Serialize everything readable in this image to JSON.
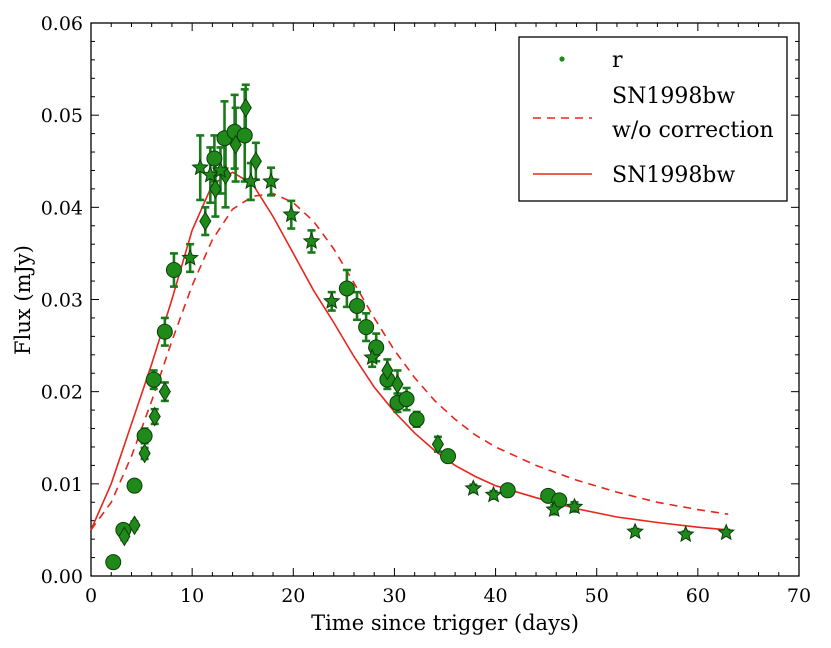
{
  "chart_data": {
    "type": "scatter",
    "xlabel": "Time since trigger (days)",
    "ylabel": "Flux (mJy)",
    "xlim": [
      0,
      70
    ],
    "ylim": [
      0,
      0.06
    ],
    "xticks": [
      "0",
      "10",
      "20",
      "30",
      "40",
      "50",
      "60",
      "70"
    ],
    "yticks": [
      "0.00",
      "0.01",
      "0.02",
      "0.03",
      "0.04",
      "0.05",
      "0.06"
    ],
    "legend_position": "top-right",
    "colors": {
      "points": "#1f8a1a",
      "point_edge": "#0b3d0b",
      "errorbar": "#1a7a1a",
      "model": "#e8261c"
    },
    "series": [
      {
        "name": "r",
        "kind": "scatter",
        "points": [
          {
            "x": 2.2,
            "y": 0.0015,
            "err": 0.0003,
            "marker": "circle"
          },
          {
            "x": 3.2,
            "y": 0.005,
            "err": 0.0005,
            "marker": "circle"
          },
          {
            "x": 4.3,
            "y": 0.0098,
            "err": 0.0005,
            "marker": "circle"
          },
          {
            "x": 5.3,
            "y": 0.0152,
            "err": 0.0008,
            "marker": "circle"
          },
          {
            "x": 6.2,
            "y": 0.0213,
            "err": 0.001,
            "marker": "circle"
          },
          {
            "x": 7.3,
            "y": 0.0265,
            "err": 0.0015,
            "marker": "circle"
          },
          {
            "x": 8.2,
            "y": 0.0332,
            "err": 0.0018,
            "marker": "circle"
          },
          {
            "x": 12.2,
            "y": 0.0453,
            "err": 0.0025,
            "marker": "circle"
          },
          {
            "x": 13.2,
            "y": 0.0475,
            "err": 0.004,
            "marker": "circle"
          },
          {
            "x": 14.2,
            "y": 0.0482,
            "err": 0.004,
            "marker": "circle"
          },
          {
            "x": 15.2,
            "y": 0.0478,
            "err": 0.005,
            "marker": "circle"
          },
          {
            "x": 25.3,
            "y": 0.0312,
            "err": 0.002,
            "marker": "circle"
          },
          {
            "x": 26.3,
            "y": 0.0293,
            "err": 0.0015,
            "marker": "circle"
          },
          {
            "x": 27.2,
            "y": 0.027,
            "err": 0.0015,
            "marker": "circle"
          },
          {
            "x": 28.2,
            "y": 0.0248,
            "err": 0.0015,
            "marker": "circle"
          },
          {
            "x": 29.3,
            "y": 0.0213,
            "err": 0.001,
            "marker": "circle"
          },
          {
            "x": 30.3,
            "y": 0.0188,
            "err": 0.001,
            "marker": "circle"
          },
          {
            "x": 31.2,
            "y": 0.0192,
            "err": 0.0012,
            "marker": "circle"
          },
          {
            "x": 32.2,
            "y": 0.017,
            "err": 0.0008,
            "marker": "circle"
          },
          {
            "x": 35.3,
            "y": 0.013,
            "err": 0.0006,
            "marker": "circle"
          },
          {
            "x": 41.2,
            "y": 0.0093,
            "err": 0.0004,
            "marker": "circle"
          },
          {
            "x": 45.2,
            "y": 0.0087,
            "err": 0.0005,
            "marker": "circle"
          },
          {
            "x": 46.3,
            "y": 0.0082,
            "err": 0.0006,
            "marker": "circle"
          },
          {
            "x": 3.3,
            "y": 0.0043,
            "err": 0.0004,
            "marker": "diamond"
          },
          {
            "x": 4.3,
            "y": 0.0055,
            "err": 0.0004,
            "marker": "diamond"
          },
          {
            "x": 5.3,
            "y": 0.0133,
            "err": 0.0006,
            "marker": "diamond"
          },
          {
            "x": 6.3,
            "y": 0.0173,
            "err": 0.0008,
            "marker": "diamond"
          },
          {
            "x": 7.3,
            "y": 0.02,
            "err": 0.001,
            "marker": "diamond"
          },
          {
            "x": 11.3,
            "y": 0.0385,
            "err": 0.0015,
            "marker": "diamond"
          },
          {
            "x": 12.3,
            "y": 0.042,
            "err": 0.003,
            "marker": "diamond"
          },
          {
            "x": 13.3,
            "y": 0.0435,
            "err": 0.0035,
            "marker": "diamond"
          },
          {
            "x": 14.3,
            "y": 0.0468,
            "err": 0.004,
            "marker": "diamond"
          },
          {
            "x": 15.3,
            "y": 0.0508,
            "err": 0.0025,
            "marker": "diamond"
          },
          {
            "x": 16.3,
            "y": 0.045,
            "err": 0.002,
            "marker": "diamond"
          },
          {
            "x": 29.3,
            "y": 0.0223,
            "err": 0.0012,
            "marker": "diamond"
          },
          {
            "x": 30.3,
            "y": 0.0208,
            "err": 0.0015,
            "marker": "diamond"
          },
          {
            "x": 34.3,
            "y": 0.0143,
            "err": 0.0008,
            "marker": "diamond"
          },
          {
            "x": 9.8,
            "y": 0.0345,
            "err": 0.0015,
            "marker": "star"
          },
          {
            "x": 10.8,
            "y": 0.0443,
            "err": 0.0035,
            "marker": "star"
          },
          {
            "x": 11.8,
            "y": 0.0435,
            "err": 0.003,
            "marker": "star"
          },
          {
            "x": 12.8,
            "y": 0.044,
            "err": 0.0025,
            "marker": "star"
          },
          {
            "x": 15.8,
            "y": 0.0428,
            "err": 0.002,
            "marker": "star"
          },
          {
            "x": 17.8,
            "y": 0.0428,
            "err": 0.0015,
            "marker": "star"
          },
          {
            "x": 19.8,
            "y": 0.0392,
            "err": 0.0015,
            "marker": "star"
          },
          {
            "x": 21.8,
            "y": 0.0363,
            "err": 0.0012,
            "marker": "star"
          },
          {
            "x": 23.8,
            "y": 0.0298,
            "err": 0.001,
            "marker": "star"
          },
          {
            "x": 27.8,
            "y": 0.0237,
            "err": 0.001,
            "marker": "star"
          },
          {
            "x": 37.8,
            "y": 0.0095,
            "err": 0.0004,
            "marker": "star"
          },
          {
            "x": 39.8,
            "y": 0.0088,
            "err": 0.0004,
            "marker": "star"
          },
          {
            "x": 45.8,
            "y": 0.0072,
            "err": 0.0005,
            "marker": "star"
          },
          {
            "x": 47.8,
            "y": 0.0075,
            "err": 0.0005,
            "marker": "star"
          },
          {
            "x": 53.8,
            "y": 0.0048,
            "err": 0.0003,
            "marker": "star"
          },
          {
            "x": 58.8,
            "y": 0.0045,
            "err": 0.0003,
            "marker": "star"
          },
          {
            "x": 62.8,
            "y": 0.0047,
            "err": 0.0003,
            "marker": "star"
          }
        ]
      },
      {
        "name": "SN1998bw w/o correction",
        "legend_lines": [
          "SN1998bw",
          "w/o correction"
        ],
        "kind": "line",
        "style": "dashed",
        "x": [
          0,
          2,
          4,
          6,
          8,
          10,
          12,
          14,
          16,
          18,
          20,
          22,
          24,
          26,
          28,
          30,
          32,
          34,
          36,
          38,
          40,
          44,
          48,
          52,
          56,
          60,
          63
        ],
        "y": [
          0.005,
          0.008,
          0.013,
          0.019,
          0.0255,
          0.0315,
          0.0365,
          0.0398,
          0.0412,
          0.0415,
          0.0405,
          0.0385,
          0.0355,
          0.0318,
          0.028,
          0.0245,
          0.0215,
          0.019,
          0.017,
          0.0153,
          0.014,
          0.012,
          0.0104,
          0.0091,
          0.008,
          0.0072,
          0.0067
        ]
      },
      {
        "name": "SN1998bw",
        "kind": "line",
        "style": "solid",
        "x": [
          0,
          2,
          4,
          6,
          8,
          10,
          12,
          14,
          16,
          18,
          20,
          22,
          24,
          26,
          28,
          30,
          32,
          34,
          36,
          38,
          40,
          44,
          48,
          52,
          56,
          60,
          63
        ],
        "y": [
          0.005,
          0.01,
          0.0165,
          0.023,
          0.03,
          0.0375,
          0.0425,
          0.0438,
          0.0425,
          0.039,
          0.035,
          0.031,
          0.0275,
          0.0238,
          0.0205,
          0.0178,
          0.0155,
          0.0136,
          0.012,
          0.0108,
          0.0098,
          0.0085,
          0.0073,
          0.0064,
          0.0058,
          0.0053,
          0.005
        ]
      }
    ]
  }
}
